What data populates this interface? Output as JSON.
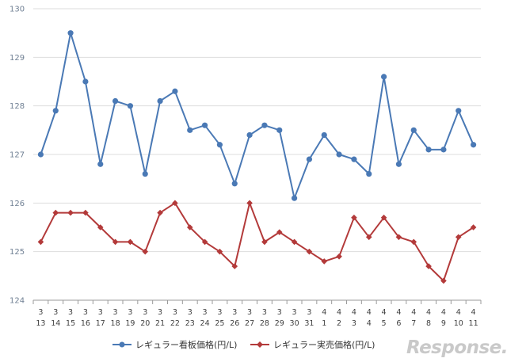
{
  "chart_data": {
    "type": "line",
    "title": "",
    "xlabel": "",
    "ylabel": "",
    "ylim": [
      124,
      130
    ],
    "yticks": [
      124,
      125,
      126,
      127,
      128,
      129,
      130
    ],
    "grid": true,
    "legend_position": "bottom",
    "categories": [
      {
        "month": "3",
        "day": "13"
      },
      {
        "month": "3",
        "day": "14"
      },
      {
        "month": "3",
        "day": "15"
      },
      {
        "month": "3",
        "day": "16"
      },
      {
        "month": "3",
        "day": "17"
      },
      {
        "month": "3",
        "day": "18"
      },
      {
        "month": "3",
        "day": "19"
      },
      {
        "month": "3",
        "day": "20"
      },
      {
        "month": "3",
        "day": "21"
      },
      {
        "month": "3",
        "day": "22"
      },
      {
        "month": "3",
        "day": "23"
      },
      {
        "month": "3",
        "day": "24"
      },
      {
        "month": "3",
        "day": "25"
      },
      {
        "month": "3",
        "day": "26"
      },
      {
        "month": "3",
        "day": "27"
      },
      {
        "month": "3",
        "day": "28"
      },
      {
        "month": "3",
        "day": "29"
      },
      {
        "month": "3",
        "day": "30"
      },
      {
        "month": "3",
        "day": "31"
      },
      {
        "month": "4",
        "day": "1"
      },
      {
        "month": "4",
        "day": "2"
      },
      {
        "month": "4",
        "day": "3"
      },
      {
        "month": "4",
        "day": "4"
      },
      {
        "month": "4",
        "day": "5"
      },
      {
        "month": "4",
        "day": "6"
      },
      {
        "month": "4",
        "day": "7"
      },
      {
        "month": "4",
        "day": "8"
      },
      {
        "month": "4",
        "day": "9"
      },
      {
        "month": "4",
        "day": "10"
      },
      {
        "month": "4",
        "day": "11"
      }
    ],
    "series": [
      {
        "name": "レギュラー看板価格(円/L)",
        "color": "#4a79b5",
        "marker": "circle",
        "values": [
          127.0,
          127.9,
          129.5,
          128.5,
          126.8,
          128.1,
          128.0,
          126.6,
          128.1,
          128.3,
          127.5,
          127.6,
          127.2,
          126.4,
          127.4,
          127.6,
          127.5,
          126.1,
          126.9,
          127.4,
          127.0,
          126.9,
          126.6,
          128.6,
          126.8,
          127.5,
          127.1,
          127.1,
          127.9,
          127.2
        ]
      },
      {
        "name": "レギュラー実売価格(円/L)",
        "color": "#b33a3a",
        "marker": "diamond",
        "values": [
          125.2,
          125.8,
          125.8,
          125.8,
          125.5,
          125.2,
          125.2,
          125.0,
          125.8,
          126.0,
          125.5,
          125.2,
          125.0,
          124.7,
          126.0,
          125.2,
          125.4,
          125.2,
          125.0,
          124.8,
          124.9,
          125.7,
          125.3,
          125.7,
          125.3,
          125.2,
          124.7,
          124.4,
          125.3,
          125.5
        ]
      }
    ]
  },
  "watermark": "Response."
}
